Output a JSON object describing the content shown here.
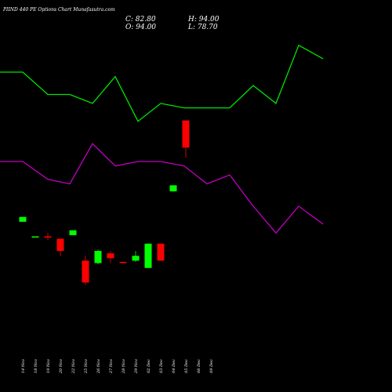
{
  "header": {
    "title": "PIIND 440 PE Options Chart Munafasutra.com",
    "close_label": "C: 82.80",
    "open_label": "O: 94.00",
    "high_label": "H: 94.00",
    "low_label": "L: 78.70"
  },
  "chart_data": {
    "type": "candlestick",
    "title": "PIIND 440 PE Options Chart Munafasutra.com",
    "dates": [
      "14 Nov",
      "18 Nov",
      "19 Nov",
      "20 Nov",
      "22 Nov",
      "25 Nov",
      "26 Nov",
      "27 Nov",
      "28 Nov",
      "29 Nov",
      "02 Dec",
      "03 Dec",
      "04 Dec",
      "05 Dec",
      "06 Dec",
      "09 Dec"
    ],
    "candles": [
      {
        "date": "14 Nov",
        "open": 52.3,
        "high": 54.3,
        "low": 52.3,
        "close": 54.3
      },
      {
        "date": "18 Nov",
        "open": 45.8,
        "high": 46.3,
        "low": 45.8,
        "close": 46.3
      },
      {
        "date": "19 Nov",
        "open": 46.3,
        "high": 47.8,
        "low": 44.8,
        "close": 45.8
      },
      {
        "date": "20 Nov",
        "open": 45.3,
        "high": 45.3,
        "low": 38.3,
        "close": 40.3
      },
      {
        "date": "22 Nov",
        "open": 46.8,
        "high": 48.8,
        "low": 46.8,
        "close": 48.8
      },
      {
        "date": "25 Nov",
        "open": 36.3,
        "high": 38.3,
        "low": 26.3,
        "close": 27.3
      },
      {
        "date": "26 Nov",
        "open": 35.3,
        "high": 40.8,
        "low": 34.8,
        "close": 40.3
      },
      {
        "date": "27 Nov",
        "open": 39.3,
        "high": 40.3,
        "low": 35.3,
        "close": 37.3
      },
      {
        "date": "28 Nov",
        "open": 35.8,
        "high": 35.8,
        "low": 35.3,
        "close": 35.3
      },
      {
        "date": "29 Nov",
        "open": 36.3,
        "high": 40.3,
        "low": 35.8,
        "close": 38.3
      },
      {
        "date": "02 Dec",
        "open": 33.3,
        "high": 43.3,
        "low": 33.3,
        "close": 43.3
      },
      {
        "date": "03 Dec",
        "open": 43.3,
        "high": 43.3,
        "low": 36.3,
        "close": 36.3
      },
      {
        "date": "04 Dec",
        "open": 64.8,
        "high": 67.3,
        "low": 64.8,
        "close": 67.3
      },
      {
        "date": "05 Dec",
        "open": 94.0,
        "high": 94.0,
        "low": 78.7,
        "close": 82.8
      }
    ],
    "lines": [
      {
        "color": "#00e400",
        "values": [
          88.0,
          88.0,
          85.5,
          85.5,
          84.5,
          87.5,
          82.5,
          84.5,
          84.0,
          84.0,
          84.0,
          86.5,
          84.5,
          91.0,
          89.5
        ]
      },
      {
        "color": "#c000c0",
        "values": [
          78.0,
          78.0,
          76.0,
          75.5,
          80.0,
          77.5,
          78.0,
          78.0,
          77.5,
          75.5,
          76.5,
          73.0,
          70.0,
          73.0,
          71.0
        ]
      }
    ],
    "colors": {
      "up": "#00ff00",
      "down": "#ff0000",
      "background": "#000000"
    }
  }
}
